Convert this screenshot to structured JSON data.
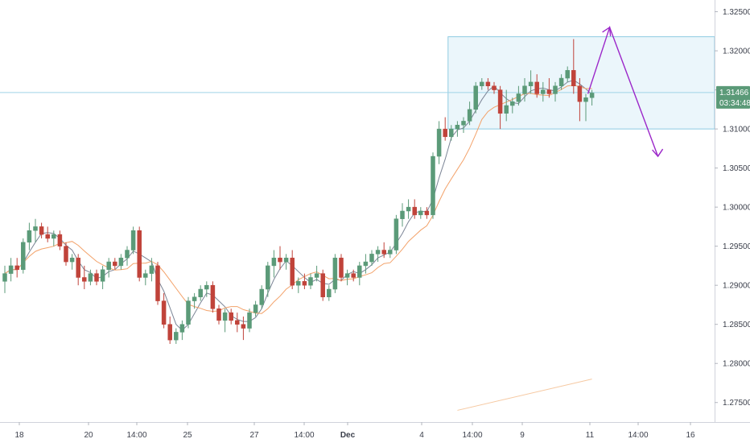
{
  "chart_data": {
    "type": "candlestick",
    "title": "",
    "y_axis": {
      "position": "right",
      "ticks": [
        "1.32500",
        "1.32000",
        "1.31500",
        "1.31000",
        "1.30500",
        "1.30000",
        "1.29500",
        "1.29000",
        "1.28500",
        "1.28000",
        "1.27500"
      ],
      "range": [
        1.2725,
        1.3265
      ]
    },
    "x_axis": {
      "ticks": [
        "18",
        "20",
        "14:00",
        "25",
        "27",
        "14:00",
        "Dec",
        "4",
        "14:00",
        "9",
        "11",
        "14:00",
        "16"
      ]
    },
    "last_price": "1.31466",
    "countdown": "03:34:48",
    "grid": false,
    "colors": {
      "up": "#5b9a78",
      "down": "#c0433a",
      "ma_fast": "#7c8596",
      "ma_slow": "#f3a26a",
      "ma_long": "#f6c9a2",
      "range_box_fill": "#e8f4fa",
      "range_box_border": "#8fcbe2",
      "projection": "#9b27c9",
      "price_tag": "#5b9a78"
    },
    "candles": [
      [
        1.2905,
        1.2925,
        1.289,
        1.2915
      ],
      [
        1.2915,
        1.2935,
        1.2905,
        1.2925
      ],
      [
        1.2925,
        1.2935,
        1.291,
        1.292
      ],
      [
        1.292,
        1.296,
        1.2915,
        1.2955
      ],
      [
        1.2955,
        1.298,
        1.2945,
        1.297
      ],
      [
        1.297,
        1.2985,
        1.2955,
        1.2975
      ],
      [
        1.2975,
        1.298,
        1.296,
        1.2965
      ],
      [
        1.2965,
        1.2975,
        1.2955,
        1.296
      ],
      [
        1.296,
        1.297,
        1.295,
        1.2965
      ],
      [
        1.2965,
        1.297,
        1.2945,
        1.295
      ],
      [
        1.295,
        1.2955,
        1.2925,
        1.293
      ],
      [
        1.293,
        1.294,
        1.292,
        1.2935
      ],
      [
        1.2935,
        1.294,
        1.29,
        1.291
      ],
      [
        1.291,
        1.2925,
        1.2895,
        1.2905
      ],
      [
        1.2905,
        1.292,
        1.29,
        1.2915
      ],
      [
        1.2915,
        1.292,
        1.29,
        1.2905
      ],
      [
        1.2905,
        1.2925,
        1.2895,
        1.292
      ],
      [
        1.292,
        1.2935,
        1.291,
        1.293
      ],
      [
        1.293,
        1.2935,
        1.292,
        1.2925
      ],
      [
        1.2925,
        1.294,
        1.292,
        1.2935
      ],
      [
        1.2935,
        1.295,
        1.2925,
        1.2945
      ],
      [
        1.2945,
        1.2975,
        1.294,
        1.297
      ],
      [
        1.297,
        1.2975,
        1.2905,
        1.291
      ],
      [
        1.291,
        1.292,
        1.29,
        1.2915
      ],
      [
        1.2915,
        1.2935,
        1.2905,
        1.2925
      ],
      [
        1.2925,
        1.293,
        1.2875,
        1.288
      ],
      [
        1.288,
        1.289,
        1.2845,
        1.285
      ],
      [
        1.285,
        1.286,
        1.2825,
        1.283
      ],
      [
        1.283,
        1.2845,
        1.2825,
        1.284
      ],
      [
        1.284,
        1.2855,
        1.283,
        1.285
      ],
      [
        1.285,
        1.2885,
        1.2845,
        1.288
      ],
      [
        1.288,
        1.289,
        1.287,
        1.2885
      ],
      [
        1.2885,
        1.29,
        1.288,
        1.2895
      ],
      [
        1.2895,
        1.2905,
        1.2885,
        1.29
      ],
      [
        1.29,
        1.2905,
        1.2865,
        1.287
      ],
      [
        1.287,
        1.2875,
        1.285,
        1.2855
      ],
      [
        1.2855,
        1.287,
        1.284,
        1.2865
      ],
      [
        1.2865,
        1.287,
        1.285,
        1.2855
      ],
      [
        1.2855,
        1.2865,
        1.284,
        1.285
      ],
      [
        1.285,
        1.286,
        1.283,
        1.2845
      ],
      [
        1.2845,
        1.287,
        1.284,
        1.2865
      ],
      [
        1.2865,
        1.288,
        1.286,
        1.2875
      ],
      [
        1.2875,
        1.29,
        1.287,
        1.2895
      ],
      [
        1.2895,
        1.293,
        1.2885,
        1.2925
      ],
      [
        1.2925,
        1.2945,
        1.291,
        1.2935
      ],
      [
        1.2935,
        1.295,
        1.292,
        1.293
      ],
      [
        1.293,
        1.294,
        1.292,
        1.2935
      ],
      [
        1.2935,
        1.2945,
        1.2895,
        1.29
      ],
      [
        1.29,
        1.291,
        1.289,
        1.2905
      ],
      [
        1.2905,
        1.2915,
        1.2895,
        1.29
      ],
      [
        1.29,
        1.2915,
        1.2895,
        1.291
      ],
      [
        1.291,
        1.2925,
        1.2905,
        1.2915
      ],
      [
        1.2915,
        1.292,
        1.288,
        1.2885
      ],
      [
        1.2885,
        1.29,
        1.288,
        1.2895
      ],
      [
        1.2895,
        1.294,
        1.289,
        1.2935
      ],
      [
        1.2935,
        1.294,
        1.2905,
        1.291
      ],
      [
        1.291,
        1.292,
        1.29,
        1.2915
      ],
      [
        1.2915,
        1.292,
        1.2905,
        1.291
      ],
      [
        1.291,
        1.293,
        1.29,
        1.2925
      ],
      [
        1.2925,
        1.294,
        1.2915,
        1.293
      ],
      [
        1.293,
        1.2945,
        1.2925,
        1.294
      ],
      [
        1.294,
        1.295,
        1.293,
        1.2945
      ],
      [
        1.2945,
        1.2955,
        1.2935,
        1.294
      ],
      [
        1.294,
        1.295,
        1.2935,
        1.2945
      ],
      [
        1.2945,
        1.299,
        1.294,
        1.2985
      ],
      [
        1.2985,
        1.3005,
        1.2975,
        1.2995
      ],
      [
        1.2995,
        1.301,
        1.2985,
        1.3
      ],
      [
        1.3,
        1.301,
        1.2985,
        1.299
      ],
      [
        1.299,
        1.3,
        1.2985,
        1.2995
      ],
      [
        1.2995,
        1.3,
        1.2985,
        1.299
      ],
      [
        1.299,
        1.307,
        1.2985,
        1.3065
      ],
      [
        1.3065,
        1.311,
        1.3055,
        1.31
      ],
      [
        1.31,
        1.3115,
        1.3085,
        1.309
      ],
      [
        1.309,
        1.3105,
        1.3085,
        1.31
      ],
      [
        1.31,
        1.311,
        1.309,
        1.3105
      ],
      [
        1.3105,
        1.3115,
        1.3095,
        1.311
      ],
      [
        1.311,
        1.3135,
        1.3105,
        1.3125
      ],
      [
        1.3125,
        1.316,
        1.312,
        1.3155
      ],
      [
        1.3155,
        1.3165,
        1.315,
        1.316
      ],
      [
        1.316,
        1.3165,
        1.315,
        1.3155
      ],
      [
        1.3155,
        1.316,
        1.3145,
        1.315
      ],
      [
        1.315,
        1.3155,
        1.31,
        1.312
      ],
      [
        1.312,
        1.315,
        1.311,
        1.313
      ],
      [
        1.313,
        1.314,
        1.312,
        1.3135
      ],
      [
        1.3135,
        1.3155,
        1.313,
        1.3145
      ],
      [
        1.3145,
        1.3165,
        1.3135,
        1.3155
      ],
      [
        1.3155,
        1.3175,
        1.3145,
        1.316
      ],
      [
        1.316,
        1.317,
        1.314,
        1.3145
      ],
      [
        1.3145,
        1.316,
        1.3135,
        1.315
      ],
      [
        1.315,
        1.3165,
        1.314,
        1.3145
      ],
      [
        1.3145,
        1.316,
        1.3135,
        1.3155
      ],
      [
        1.3155,
        1.317,
        1.315,
        1.3165
      ],
      [
        1.3165,
        1.318,
        1.316,
        1.3175
      ],
      [
        1.3175,
        1.3215,
        1.3145,
        1.3155
      ],
      [
        1.3155,
        1.3165,
        1.311,
        1.3135
      ],
      [
        1.3135,
        1.3145,
        1.311,
        1.314
      ],
      [
        1.314,
        1.315,
        1.313,
        1.3146
      ]
    ]
  }
}
